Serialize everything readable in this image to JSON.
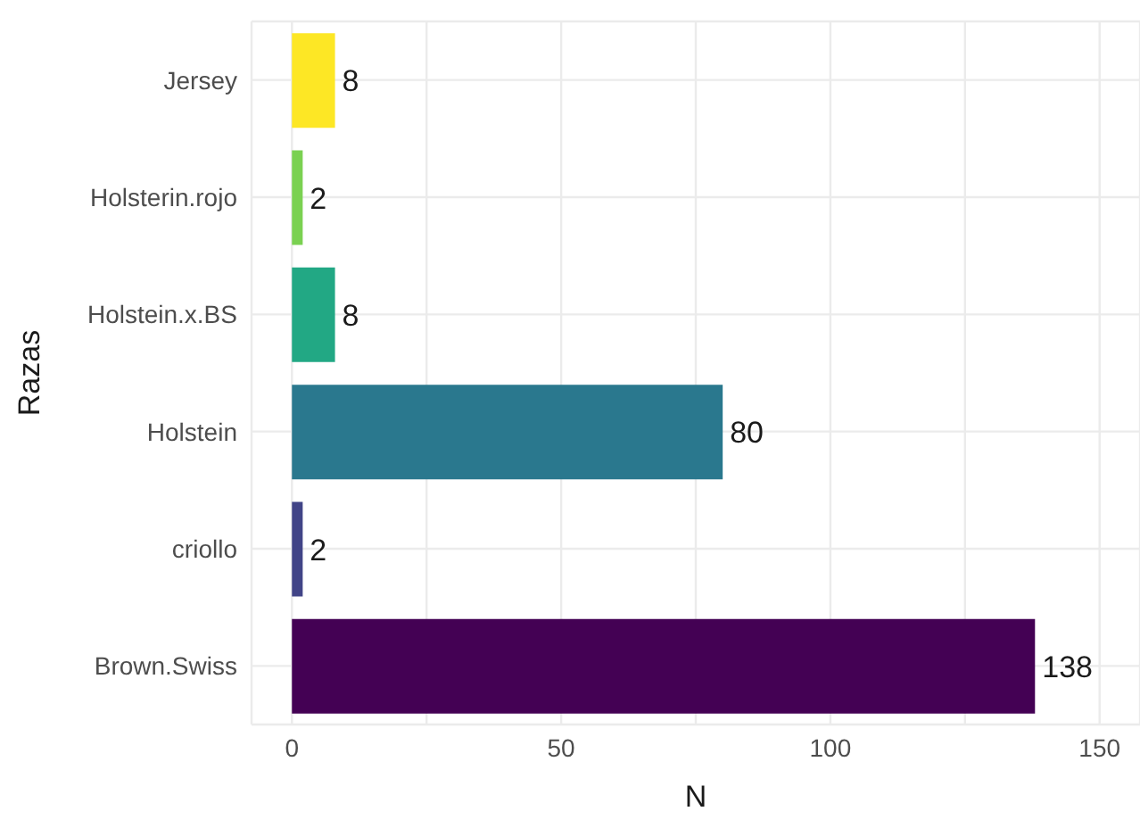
{
  "chart_data": {
    "type": "bar",
    "orientation": "horizontal",
    "xlabel": "N",
    "ylabel": "Razas",
    "categories": [
      "Jersey",
      "Holsterin.rojo",
      "Holstein.x.BS",
      "Holstein",
      "criollo",
      "Brown.Swiss"
    ],
    "values": [
      8,
      2,
      8,
      80,
      2,
      138
    ],
    "colors": [
      "#fde725",
      "#7ad151",
      "#22a884",
      "#2a788e",
      "#414487",
      "#440154"
    ],
    "xlim": [
      -7.5,
      157.5
    ],
    "xticks": [
      0,
      {
        "value": 25,
        "label": null
      },
      50,
      {
        "value": 75,
        "label": null
      },
      100,
      {
        "value": 125,
        "label": null
      },
      150
    ],
    "grid": true,
    "data_labels": true,
    "legend": false
  }
}
